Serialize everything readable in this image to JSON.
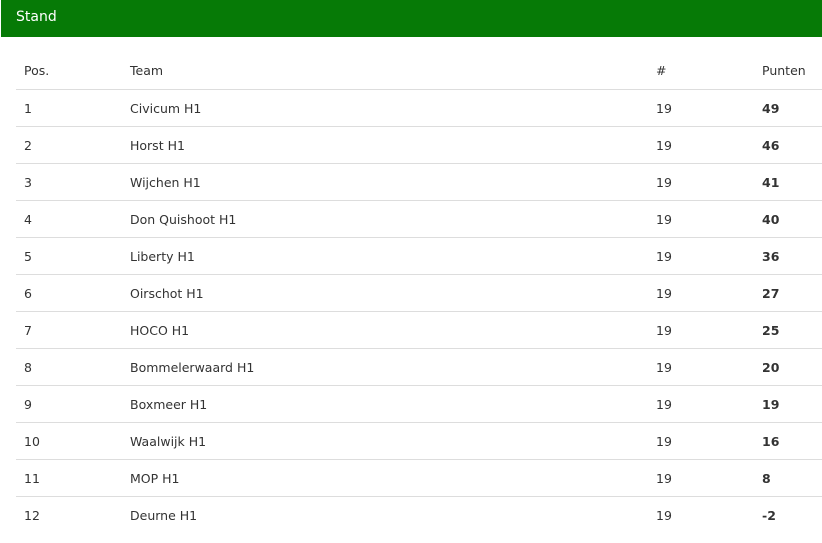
{
  "panel": {
    "title": "Stand",
    "header_color": "#067a06"
  },
  "table": {
    "columns": [
      "Pos.",
      "Team",
      "#",
      "Punten"
    ],
    "rows": [
      [
        "1",
        "Civicum H1",
        "19",
        "49"
      ],
      [
        "2",
        "Horst H1",
        "19",
        "46"
      ],
      [
        "3",
        "Wijchen H1",
        "19",
        "41"
      ],
      [
        "4",
        "Don Quishoot H1",
        "19",
        "40"
      ],
      [
        "5",
        "Liberty H1",
        "19",
        "36"
      ],
      [
        "6",
        "Oirschot H1",
        "19",
        "27"
      ],
      [
        "7",
        "HOCO H1",
        "19",
        "25"
      ],
      [
        "8",
        "Bommelerwaard H1",
        "19",
        "20"
      ],
      [
        "9",
        "Boxmeer H1",
        "19",
        "19"
      ],
      [
        "10",
        "Waalwijk H1",
        "19",
        "16"
      ],
      [
        "11",
        "MOP H1",
        "19",
        "8"
      ],
      [
        "12",
        "Deurne H1",
        "19",
        "-2"
      ]
    ]
  }
}
